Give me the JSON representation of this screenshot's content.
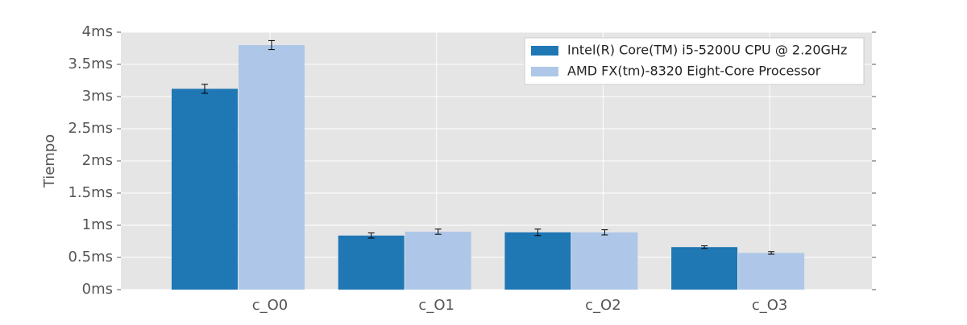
{
  "chart_data": {
    "type": "bar",
    "y_label": "Tiempo",
    "categories": [
      "c_O0",
      "c_O1",
      "c_O2",
      "c_O3"
    ],
    "series": [
      {
        "name": "Intel(R) Core(TM) i5-5200U CPU @ 2.20GHz",
        "color": "#1f77b4",
        "values": [
          3.12,
          0.84,
          0.89,
          0.66
        ],
        "errors": [
          0.07,
          0.04,
          0.05,
          0.02
        ]
      },
      {
        "name": "AMD FX(tm)-8320 Eight-Core Processor",
        "color": "#aec7e8",
        "values": [
          3.8,
          0.9,
          0.89,
          0.57
        ],
        "errors": [
          0.07,
          0.04,
          0.04,
          0.02
        ]
      }
    ],
    "ylim": [
      0,
      4
    ],
    "yticks": [
      {
        "value": 0,
        "label": "0ms"
      },
      {
        "value": 0.5,
        "label": "0.5ms"
      },
      {
        "value": 1,
        "label": "1ms"
      },
      {
        "value": 1.5,
        "label": "1.5ms"
      },
      {
        "value": 2,
        "label": "2ms"
      },
      {
        "value": 2.5,
        "label": "2.5ms"
      },
      {
        "value": 3,
        "label": "3ms"
      },
      {
        "value": 3.5,
        "label": "3.5ms"
      },
      {
        "value": 4,
        "label": "4ms"
      }
    ],
    "grid": true,
    "legend": "upper right"
  }
}
